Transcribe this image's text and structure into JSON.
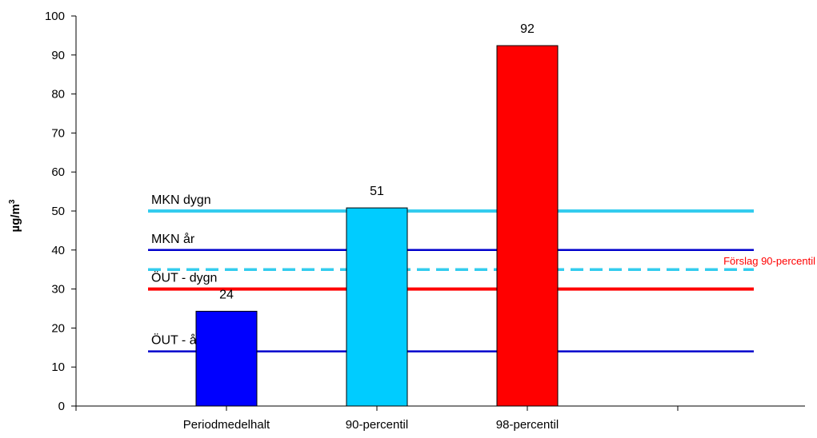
{
  "chart_data": {
    "type": "bar",
    "categories": [
      "Periodmedelhalt",
      "90-percentil",
      "98-percentil"
    ],
    "values": [
      24.3,
      50.8,
      92.4
    ],
    "data_labels": [
      "24",
      "51",
      "92"
    ],
    "bar_colors": [
      "#0000ff",
      "#00ccff",
      "#ff0000"
    ],
    "ylabel_base": "µg/m",
    "ylabel_sup": "3",
    "xlabel": "",
    "ylim": [
      0,
      100
    ],
    "yticks": [
      0,
      10,
      20,
      30,
      40,
      50,
      60,
      70,
      80,
      90,
      100
    ],
    "grid": false,
    "reference_lines": [
      {
        "label": "MKN dygn",
        "value": 50,
        "color": "#33ccee",
        "style": "solid"
      },
      {
        "label": "MKN år",
        "value": 40,
        "color": "#0000cc",
        "style": "solid"
      },
      {
        "label": "Förslag 90-percentil",
        "value": 35,
        "color": "#33ccee",
        "style": "dashed",
        "label_color": "#ff0000"
      },
      {
        "label": "ÖUT - dygn",
        "value": 30,
        "color": "#ff0000",
        "style": "solid"
      },
      {
        "label": "ÖUT - år",
        "value": 14,
        "color": "#0000cc",
        "style": "solid"
      }
    ]
  }
}
